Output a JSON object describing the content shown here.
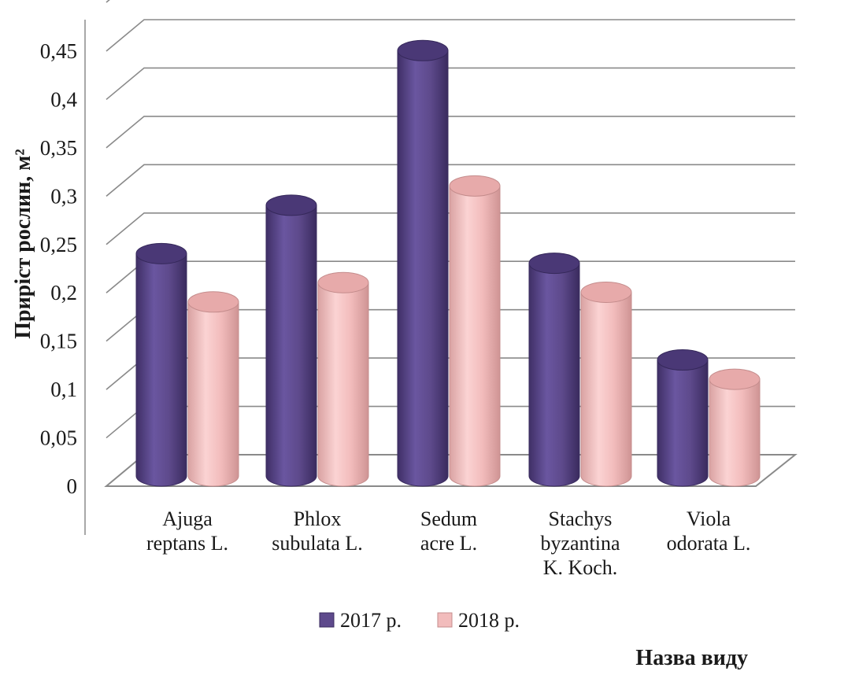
{
  "chart_data": {
    "type": "bar",
    "style": "3d-cylinder",
    "title": "",
    "xlabel": "Назва виду",
    "ylabel": "Приріст рослин, м²",
    "ylim": [
      0,
      0.45
    ],
    "yticks": [
      {
        "value": 0,
        "label": "0"
      },
      {
        "value": 0.05,
        "label": "0,05"
      },
      {
        "value": 0.1,
        "label": "0,1"
      },
      {
        "value": 0.15,
        "label": "0,15"
      },
      {
        "value": 0.2,
        "label": "0,2"
      },
      {
        "value": 0.25,
        "label": "0,25"
      },
      {
        "value": 0.3,
        "label": "0,3"
      },
      {
        "value": 0.35,
        "label": "0,35"
      },
      {
        "value": 0.4,
        "label": "0,4"
      },
      {
        "value": 0.45,
        "label": "0,45"
      }
    ],
    "grid": true,
    "legend_position": "bottom",
    "categories": [
      [
        "Ajuga",
        "reptans L."
      ],
      [
        "Phlox",
        "subulata L."
      ],
      [
        "Sedum",
        "acre L."
      ],
      [
        "Stachys",
        "byzantina",
        "K. Koch."
      ],
      [
        "Viola",
        "odorata L."
      ]
    ],
    "series": [
      {
        "name": "2017 р.",
        "color": "#5e4a8c",
        "values": [
          0.23,
          0.28,
          0.44,
          0.22,
          0.12
        ]
      },
      {
        "name": "2018 р.",
        "color": "#f2bcbc",
        "values": [
          0.18,
          0.2,
          0.3,
          0.19,
          0.1
        ]
      }
    ]
  }
}
